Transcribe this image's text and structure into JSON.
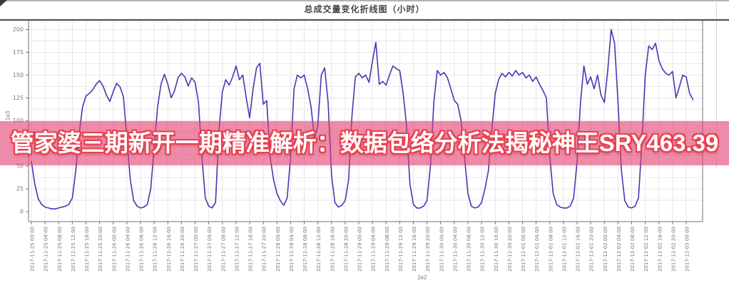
{
  "chart_data": {
    "type": "line",
    "title": "总成交量变化折线图（小时）",
    "xlabel": "",
    "ylabel": "",
    "x_offset_label": "1e2",
    "y_offset_label": "1e3",
    "grid": true,
    "legend": false,
    "y_ticks": [
      0,
      25,
      50,
      75,
      100,
      125,
      150,
      175,
      200
    ],
    "ylim": [
      0,
      210
    ],
    "x_tick_interval_hours": 4,
    "x_tick_labels": [
      "2017-11-25 00:00",
      "2017-11-25 04:00",
      "2017-11-25 08:00",
      "2017-11-25 12:00",
      "2017-11-25 16:00",
      "2017-11-25 20:00",
      "2017-11-26 00:00",
      "2017-11-26 04:00",
      "2017-11-26 08:00",
      "2017-11-26 12:00",
      "2017-11-26 16:00",
      "2017-11-26 20:00",
      "2017-11-27 00:00",
      "2017-11-27 04:00",
      "2017-11-27 08:00",
      "2017-11-27 12:00",
      "2017-11-27 16:00",
      "2017-11-27 20:00",
      "2017-11-28 00:00",
      "2017-11-28 04:00",
      "2017-11-28 08:00",
      "2017-11-28 12:00",
      "2017-11-28 16:00",
      "2017-11-28 20:00",
      "2017-11-29 00:00",
      "2017-11-29 04:00",
      "2017-11-29 08:00",
      "2017-11-29 12:00",
      "2017-11-29 16:00",
      "2017-11-29 20:00",
      "2017-11-30 00:00",
      "2017-11-30 04:00",
      "2017-11-30 08:00",
      "2017-11-30 12:00",
      "2017-11-30 16:00",
      "2017-11-30 20:00",
      "2017-12-01 00:00",
      "2017-12-01 04:00",
      "2017-12-01 08:00",
      "2017-12-01 12:00",
      "2017-12-01 16:00",
      "2017-12-01 20:00",
      "2017-12-02 00:00",
      "2017-12-02 04:00",
      "2017-12-02 08:00",
      "2017-12-02 12:00",
      "2017-12-02 16:00",
      "2017-12-02 20:00",
      "2017-12-03 00:00"
    ],
    "values_start": "2017-11-25 00:00",
    "values_interval_hours": 1,
    "values": [
      55,
      30,
      14,
      8,
      5,
      4,
      3,
      3,
      4,
      5,
      6,
      8,
      15,
      45,
      85,
      115,
      127,
      130,
      134,
      140,
      144,
      138,
      128,
      121,
      132,
      141,
      137,
      126,
      80,
      35,
      12,
      6,
      4,
      5,
      8,
      25,
      70,
      115,
      140,
      151,
      140,
      125,
      133,
      147,
      152,
      148,
      138,
      147,
      142,
      120,
      60,
      15,
      6,
      4,
      10,
      90,
      132,
      145,
      139,
      148,
      160,
      145,
      150,
      125,
      103,
      135,
      158,
      163,
      118,
      122,
      60,
      35,
      20,
      12,
      7,
      15,
      60,
      135,
      150,
      147,
      150,
      135,
      115,
      80,
      95,
      150,
      158,
      120,
      40,
      10,
      5,
      7,
      12,
      35,
      105,
      148,
      152,
      147,
      150,
      142,
      165,
      186,
      140,
      143,
      139,
      150,
      160,
      157,
      155,
      130,
      95,
      30,
      8,
      4,
      4,
      6,
      12,
      50,
      120,
      155,
      150,
      153,
      147,
      135,
      122,
      118,
      100,
      60,
      20,
      6,
      4,
      5,
      10,
      25,
      45,
      90,
      130,
      145,
      152,
      148,
      153,
      149,
      155,
      150,
      153,
      147,
      150,
      143,
      148,
      140,
      133,
      125,
      60,
      20,
      8,
      5,
      4,
      4,
      6,
      15,
      55,
      120,
      160,
      140,
      148,
      135,
      150,
      128,
      120,
      155,
      200,
      185,
      120,
      45,
      12,
      5,
      4,
      6,
      15,
      75,
      150,
      182,
      178,
      185,
      166,
      157,
      152,
      150,
      154,
      125,
      137,
      150,
      148,
      130,
      123
    ],
    "colors": {
      "line": "#4339b2",
      "grid": "#e6e6ea",
      "axis_box": "#8a8a8a",
      "axis_top": "#4a4a4a",
      "tick_label": "#777777",
      "title": "#454545"
    }
  },
  "overlay_banner": {
    "text": "管家婆三期新开一期精准解析：数据包络分析法揭秘神王SRY463.39",
    "band_color": "rgba(226,62,110,0.60)",
    "text_color": "#ffffff",
    "outline_color": "#e8404e"
  }
}
